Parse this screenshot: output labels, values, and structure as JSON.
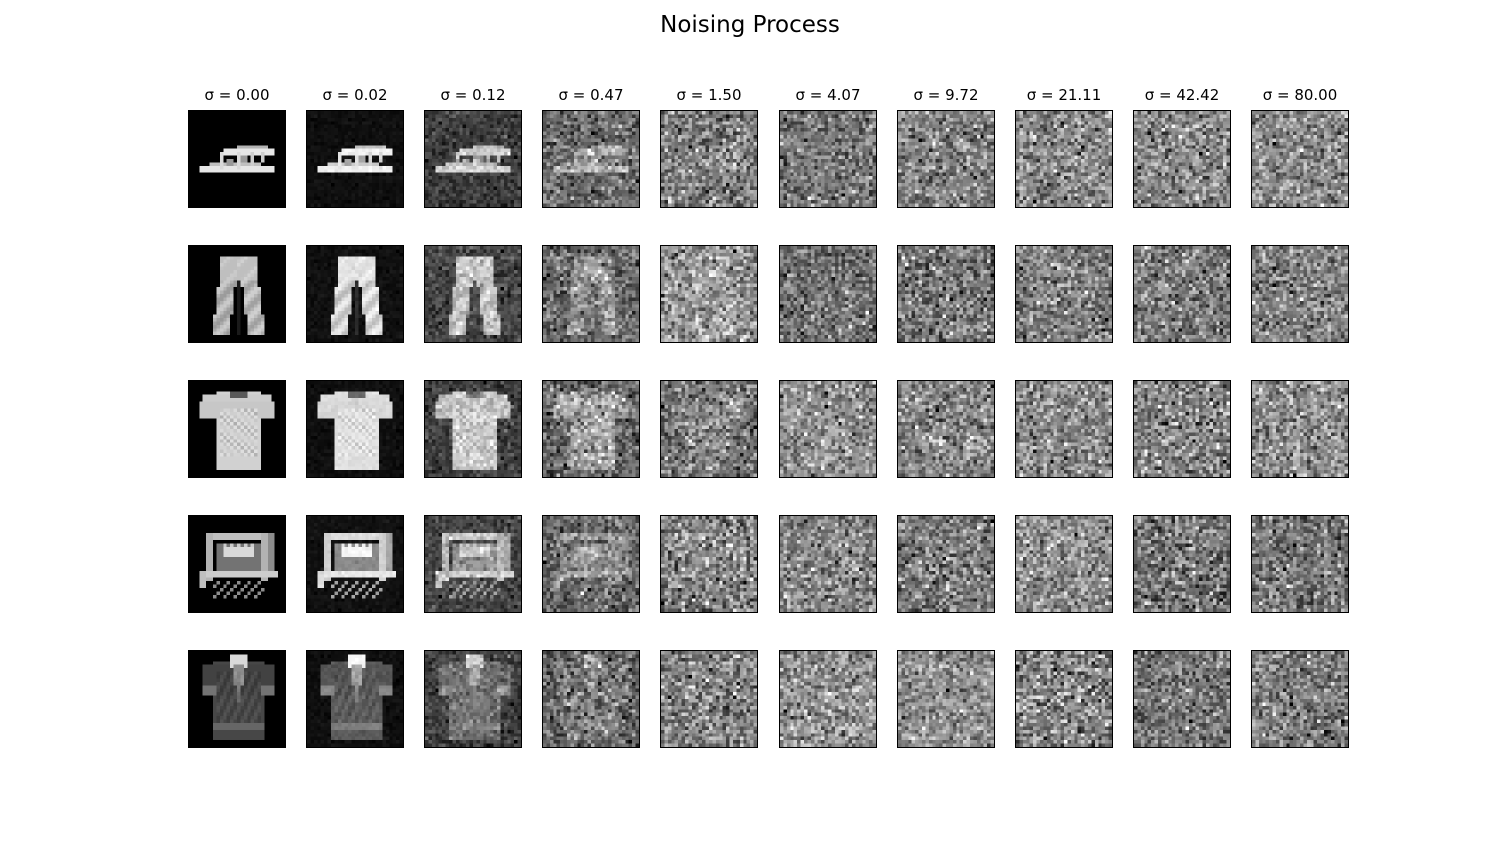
{
  "title": "Noising Process",
  "sigma_symbol": "σ",
  "chart_data": {
    "type": "image-grid",
    "title": "Noising Process",
    "rows": 5,
    "columns": 10,
    "pixel_resolution": 28,
    "colormap": "gray",
    "column_labels": [
      "σ =  0.00",
      "σ =  0.02",
      "σ =  0.12",
      "σ =  0.47",
      "σ =  1.50",
      "σ =  4.07",
      "σ =  9.72",
      "σ =  21.11",
      "σ =  42.42",
      "σ =  80.00"
    ],
    "sigmas": [
      0.0,
      0.02,
      0.12,
      0.47,
      1.5,
      4.07,
      9.72,
      21.11,
      42.42,
      80.0
    ],
    "row_items": [
      "sandal",
      "trouser",
      "t-shirt",
      "bag",
      "shirt"
    ]
  }
}
